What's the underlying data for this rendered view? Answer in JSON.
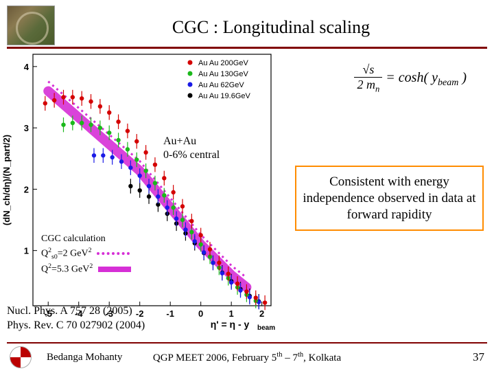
{
  "title": "CGC : Longitudinal scaling",
  "chart": {
    "ylabel": "(dN_ch/dη)/(N_part/2)",
    "yticks": [
      1,
      2,
      3,
      4
    ],
    "xticks": [
      -5,
      -4,
      -3,
      -2,
      -1,
      0,
      1,
      2
    ],
    "xlabel": "η' = η - y_beam",
    "legend": [
      {
        "label": "Au Au 200GeV",
        "color": "#d40000",
        "marker": "circle"
      },
      {
        "label": "Au Au 130GeV",
        "color": "#1bb81b",
        "marker": "circle"
      },
      {
        "label": "Au Au 62GeV",
        "color": "#1a1ae6",
        "marker": "circle"
      },
      {
        "label": "Au Au 19.6GeV",
        "color": "#000000",
        "marker": "circle"
      }
    ],
    "series": {
      "200": {
        "color": "#d40000",
        "x": [
          -5.1,
          -4.8,
          -4.5,
          -4.2,
          -3.9,
          -3.6,
          -3.3,
          -3.0,
          -2.7,
          -2.4,
          -2.1,
          -1.8,
          -1.5,
          -1.2,
          -0.9,
          -0.6,
          -0.3,
          0.0,
          0.3,
          0.6,
          0.9,
          1.2,
          1.5,
          1.8,
          2.1
        ],
        "y": [
          3.4,
          3.45,
          3.5,
          3.5,
          3.48,
          3.43,
          3.35,
          3.25,
          3.1,
          2.95,
          2.78,
          2.6,
          2.4,
          2.18,
          1.95,
          1.72,
          1.48,
          1.25,
          1.02,
          0.8,
          0.62,
          0.46,
          0.33,
          0.23,
          0.15
        ]
      },
      "130": {
        "color": "#1bb81b",
        "x": [
          -4.5,
          -4.2,
          -3.9,
          -3.6,
          -3.3,
          -3.0,
          -2.7,
          -2.4,
          -2.1,
          -1.8,
          -1.5,
          -1.2,
          -0.9,
          -0.6,
          -0.3,
          0.0,
          0.3,
          0.6,
          0.9,
          1.2,
          1.5,
          1.8
        ],
        "y": [
          3.05,
          3.08,
          3.08,
          3.05,
          3.0,
          2.92,
          2.8,
          2.65,
          2.48,
          2.3,
          2.1,
          1.9,
          1.7,
          1.5,
          1.3,
          1.1,
          0.9,
          0.72,
          0.55,
          0.4,
          0.28,
          0.18
        ]
      },
      "62": {
        "color": "#1a1ae6",
        "x": [
          -3.5,
          -3.2,
          -2.9,
          -2.6,
          -2.3,
          -2.0,
          -1.7,
          -1.4,
          -1.1,
          -0.8,
          -0.5,
          -0.2,
          0.1,
          0.4,
          0.7,
          1.0,
          1.3,
          1.6,
          1.9
        ],
        "y": [
          2.55,
          2.55,
          2.52,
          2.45,
          2.35,
          2.22,
          2.05,
          1.88,
          1.7,
          1.52,
          1.34,
          1.15,
          0.97,
          0.8,
          0.63,
          0.48,
          0.35,
          0.24,
          0.16
        ]
      },
      "19": {
        "color": "#000000",
        "x": [
          -2.3,
          -2.0,
          -1.7,
          -1.4,
          -1.1,
          -0.8,
          -0.5,
          -0.2,
          0.1,
          0.4,
          0.7,
          1.0,
          1.3,
          1.6,
          1.9
        ],
        "y": [
          2.05,
          1.98,
          1.88,
          1.75,
          1.6,
          1.44,
          1.28,
          1.12,
          0.96,
          0.8,
          0.64,
          0.5,
          0.37,
          0.26,
          0.17
        ]
      }
    },
    "band": {
      "color": "#d62fd6",
      "x": [
        -5.0,
        -2.0,
        -1.5,
        -1.0,
        -0.5,
        0.0,
        0.5,
        1.0,
        1.5
      ],
      "y": [
        3.6,
        2.3,
        2.0,
        1.7,
        1.4,
        1.1,
        0.85,
        0.6,
        0.4
      ]
    },
    "ylim": [
      0.1,
      4.2
    ],
    "xlim": [
      -5.5,
      2.3
    ],
    "marker_r": 3.2,
    "err": 0.12,
    "font_axis": 13,
    "font_legend": 11
  },
  "formula": {
    "num": "√s",
    "den": "2 m_n",
    "rhs": "= cosh( y_beam )"
  },
  "annot": {
    "l1": "Au+Au",
    "l2": "0-6% central"
  },
  "callout": "Consistent with energy independence observed in data at forward rapidity",
  "calc": {
    "title": "CGC calculation",
    "l1_a": "Q",
    "l1_b": "s0",
    "l1_c": "=2 GeV",
    "l2_a": "Q",
    "l2_b": "=5.3 GeV"
  },
  "refs": {
    "r1": "Nucl. Phys. A 757 28 (2005)",
    "r2": "Phys. Rev. C 70 027902 (2004)"
  },
  "footer": {
    "author": "Bedanga Mohanty",
    "meet_a": "QGP MEET 2006, February 5",
    "meet_b": " – 7",
    "meet_c": ", Kolkata",
    "page": "37"
  }
}
